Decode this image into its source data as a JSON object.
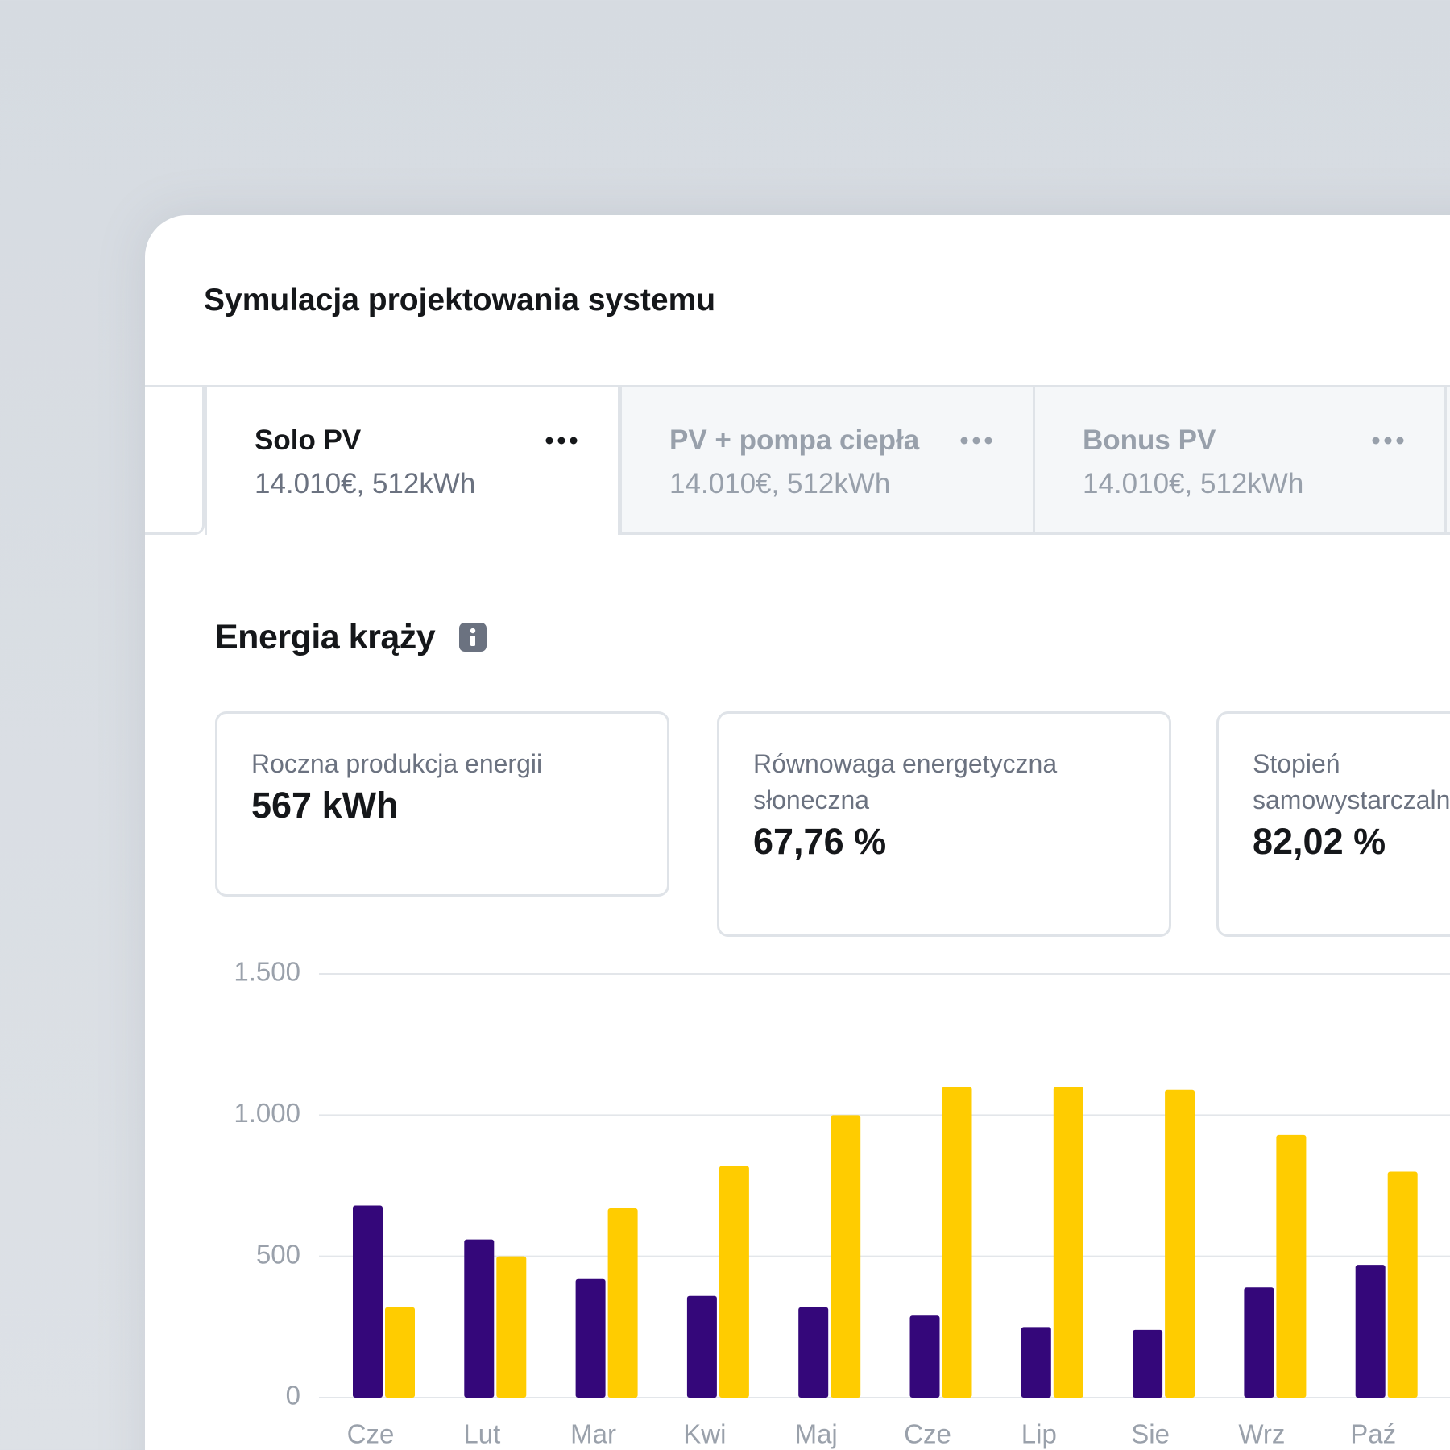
{
  "header": {
    "title": "Symulacja projektowania systemu"
  },
  "tabs": [
    {
      "name": "Solo PV",
      "subtitle": "14.010€, 512kWh"
    },
    {
      "name": "PV + pompa ciepła",
      "subtitle": "14.010€, 512kWh"
    },
    {
      "name": "Bonus PV",
      "subtitle": "14.010€, 512kWh"
    }
  ],
  "section": {
    "title": "Energia krąży"
  },
  "stats": [
    {
      "label": "Roczna produkcja energii",
      "value": "567 kWh"
    },
    {
      "label": "Równowaga energetyczna słoneczna",
      "value": "67,76 %"
    },
    {
      "label": "Stopień samowystarczalności",
      "value": "82,02 %"
    }
  ],
  "chart_data": {
    "type": "bar",
    "categories": [
      "Cze",
      "Lut",
      "Mar",
      "Kwi",
      "Maj",
      "Cze",
      "Lip",
      "Sie",
      "Wrz",
      "Paź"
    ],
    "series": [
      {
        "color": "#34077a",
        "values": [
          680,
          560,
          420,
          360,
          320,
          290,
          250,
          240,
          390,
          470
        ]
      },
      {
        "color": "#ffcc00",
        "values": [
          320,
          500,
          670,
          820,
          1000,
          1100,
          1100,
          1090,
          930,
          800
        ]
      }
    ],
    "ylim": [
      0,
      1500
    ],
    "yticks": [
      0,
      500,
      {
        "value": 1000,
        "label": "1.000"
      },
      {
        "value": 1500,
        "label": "1.500"
      }
    ],
    "grid": true
  }
}
